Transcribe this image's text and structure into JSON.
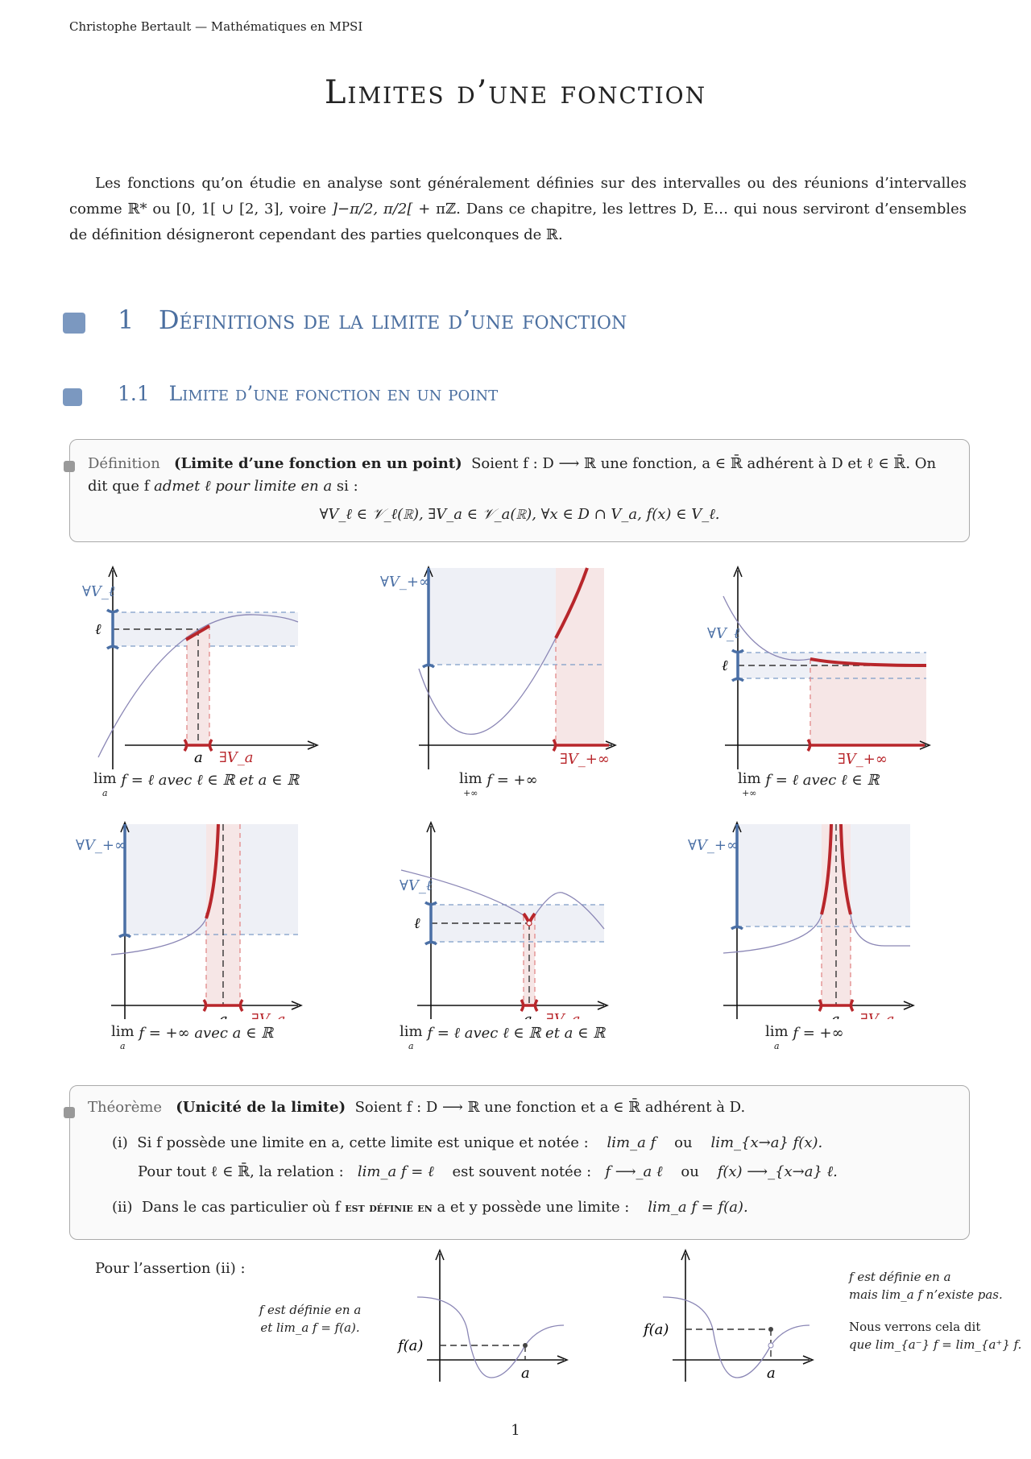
{
  "header": "Christophe Bertault — Mathématiques en MPSI",
  "title": "Limites d’une fonction",
  "intro": {
    "p1": "Les fonctions qu’on étudie en analyse sont généralement définies sur des intervalles ou des réunions d’intervalles comme ℝ* ou [0, 1[ ∪ [2, 3], voire ",
    "interval": "]−π/2, π/2[",
    "p2": " + πℤ. Dans ce chapitre, les lettres D, E… qui nous serviront d’ensembles de définition désigneront cependant des parties quelconques de ℝ."
  },
  "section": {
    "number": "1",
    "title": "Définitions de la limite d’une fonction"
  },
  "subsection": {
    "number": "1.1",
    "title": "Limite d’une fonction en un point"
  },
  "definition": {
    "label": "Définition",
    "name": "(Limite d’une fonction en un point)",
    "text1": "Soient f : D ⟶ ℝ une fonction, a ∈ ℝ̄ adhérent à D et ℓ ∈ ℝ̄. On dit que f ",
    "emph": "admet ℓ pour limite en a",
    "text2": " si :",
    "formula": "∀V_ℓ ∈ 𝒱_ℓ(ℝ),   ∃V_a ∈ 𝒱_a(ℝ),   ∀x ∈ D ∩ V_a,   f(x) ∈ V_ℓ."
  },
  "graphs": [
    {
      "forall": "∀V_ℓ",
      "ell": "ℓ",
      "a": "a",
      "exists": "∃V_a",
      "lim_sub": "a",
      "caption": "f = ℓ avec ℓ ∈ ℝ et a ∈ ℝ"
    },
    {
      "forall": "∀V_+∞",
      "exists": "∃V_+∞",
      "lim_sub": "+∞",
      "caption": "f = +∞"
    },
    {
      "forall": "∀V_ℓ",
      "ell": "ℓ",
      "exists": "∃V_+∞",
      "lim_sub": "+∞",
      "caption": "f = ℓ avec ℓ ∈ ℝ"
    },
    {
      "forall": "∀V_+∞",
      "a": "a",
      "exists": "∃V_a",
      "lim_sub": "a",
      "caption": "f = +∞ avec a ∈ ℝ"
    },
    {
      "forall": "∀V_ℓ",
      "ell": "ℓ",
      "a": "a",
      "exists": "∃V_a",
      "lim_sub": "a",
      "caption": "f = ℓ avec ℓ ∈ ℝ et a ∈ ℝ"
    },
    {
      "forall": "∀V_+∞",
      "a": "a",
      "exists": "∃V_a",
      "lim_sub": "a",
      "caption": "f = +∞"
    }
  ],
  "theorem": {
    "label": "Théorème",
    "name": "(Unicité de la limite)",
    "text": "Soient f : D ⟶ ℝ une fonction et a ∈ ℝ̄ adhérent à D.",
    "i_marker": "(i)",
    "i_text": "Si f possède une limite en a, cette limite est unique et notée :",
    "i_f1": "lim_a f",
    "ou": "ou",
    "i_f2": "lim_{x→a} f(x).",
    "i_line2": "Pour tout ℓ ∈ ℝ̄, la relation :",
    "i_f3": "lim_a f = ℓ",
    "i_mid": "est souvent notée :",
    "i_f4": "f ⟶_a ℓ",
    "i_f5": "f(x) ⟶_{x→a} ℓ.",
    "ii_marker": "(ii)",
    "ii_text1": "Dans le cas particulier où f ",
    "ii_sc": "est définie en",
    "ii_text2": " a et y possède une limite :",
    "ii_f": "lim_a f = f(a)."
  },
  "assertion": {
    "intro": "Pour l’assertion (ii) :",
    "left_note1": "f est définie en a",
    "left_note2": "et lim_a f = f(a).",
    "fa": "f(a)",
    "a": "a",
    "right_note1": "f est définie en a",
    "right_note2": "mais lim_a f n’existe pas.",
    "right_note3": "Nous verrons cela dit",
    "right_note4": "que lim_{a⁻} f = lim_{a⁺} f."
  },
  "page_number": "1",
  "colors": {
    "section": "#4b6fa0",
    "blue": "#4a6fa5",
    "red": "#b8262b",
    "curve": "#8a86b5",
    "blue_band": "#eef0f6",
    "red_band": "#f6e6e6"
  }
}
